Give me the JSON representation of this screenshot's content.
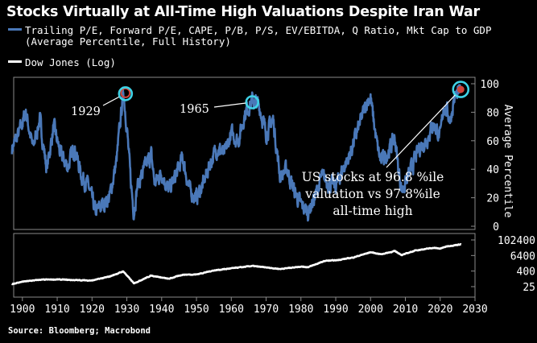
{
  "title": "Stocks Virtually at All-Time High Valuations Despite Iran War",
  "legend": {
    "valuation_line1": "Trailing P/E, Forward P/E, CAPE, P/B, P/S, EV/EBITDA, Q Ratio, Mkt Cap to GDP",
    "valuation_line2": "(Average Percentile, Full History)",
    "dow": "Dow Jones (Log)"
  },
  "source": "Source: Bloomberg; Macrobond",
  "colors": {
    "valuation": "#4a78b8",
    "dow": "#ffffff",
    "highlight": "#3ed2e6",
    "background": "#000000"
  },
  "annotations": {
    "year_1929": "1929",
    "year_1965": "1965",
    "callout_line1": "US stocks at 96.8 %ile",
    "callout_line2": "valuation vs 97.8%ile",
    "callout_line3": "all-time high"
  },
  "chart_data": [
    {
      "type": "line",
      "series": [
        {
          "name": "Trailing P/E, Forward P/E, CAPE, P/B, P/S, EV/EBITDA, Q Ratio, Mkt Cap to GDP (Average Percentile, Full History)"
        }
      ],
      "x": [
        1897,
        1899,
        1901,
        1903,
        1905,
        1907,
        1909,
        1911,
        1913,
        1915,
        1917,
        1919,
        1921,
        1923,
        1925,
        1927,
        1929,
        1930,
        1931,
        1932,
        1933,
        1935,
        1937,
        1938,
        1940,
        1942,
        1944,
        1946,
        1948,
        1950,
        1952,
        1954,
        1956,
        1958,
        1960,
        1962,
        1964,
        1966,
        1968,
        1970,
        1972,
        1974,
        1976,
        1978,
        1980,
        1982,
        1984,
        1986,
        1988,
        1990,
        1992,
        1994,
        1996,
        1998,
        1999,
        2000,
        2001,
        2002,
        2003,
        2005,
        2007,
        2008,
        2009,
        2010,
        2012,
        2014,
        2016,
        2018,
        2019,
        2020,
        2021,
        2022,
        2023,
        2024,
        2025,
        2026
      ],
      "y": [
        55,
        65,
        80,
        55,
        75,
        40,
        70,
        50,
        42,
        55,
        35,
        28,
        10,
        15,
        20,
        45,
        95,
        70,
        35,
        10,
        28,
        40,
        50,
        30,
        38,
        25,
        35,
        48,
        25,
        20,
        30,
        45,
        55,
        50,
        65,
        60,
        80,
        88,
        85,
        65,
        75,
        35,
        40,
        25,
        15,
        10,
        20,
        35,
        30,
        28,
        40,
        50,
        65,
        80,
        88,
        90,
        72,
        55,
        45,
        52,
        62,
        40,
        25,
        30,
        42,
        55,
        60,
        72,
        68,
        62,
        85,
        80,
        75,
        90,
        92,
        96.8
      ],
      "ylim": [
        0,
        100
      ],
      "y_ticks": [
        "0",
        "20",
        "40",
        "60",
        "80",
        "100"
      ],
      "ylabel": "Average Percentile"
    },
    {
      "type": "line",
      "series": [
        {
          "name": "Dow Jones (Log)"
        }
      ],
      "x": [
        1897,
        1900,
        1905,
        1910,
        1915,
        1920,
        1925,
        1929,
        1932,
        1937,
        1942,
        1946,
        1950,
        1955,
        1960,
        1966,
        1970,
        1974,
        1980,
        1982,
        1987,
        1990,
        1995,
        2000,
        2003,
        2007,
        2009,
        2013,
        2018,
        2020,
        2022,
        2026
      ],
      "y": [
        40,
        60,
        85,
        90,
        80,
        75,
        150,
        380,
        45,
        180,
        100,
        210,
        220,
        450,
        650,
        990,
        760,
        580,
        900,
        800,
        2500,
        2700,
        4500,
        11500,
        8000,
        14000,
        7000,
        16000,
        25000,
        22000,
        33000,
        47500
      ],
      "y_ticks": [
        "25",
        "400",
        "6400",
        "102400"
      ],
      "log_scale": true
    }
  ],
  "x_axis": {
    "ticks": [
      "1900",
      "1910",
      "1920",
      "1930",
      "1940",
      "1950",
      "1960",
      "1970",
      "1980",
      "1990",
      "2000",
      "2010",
      "2020",
      "2030"
    ]
  }
}
